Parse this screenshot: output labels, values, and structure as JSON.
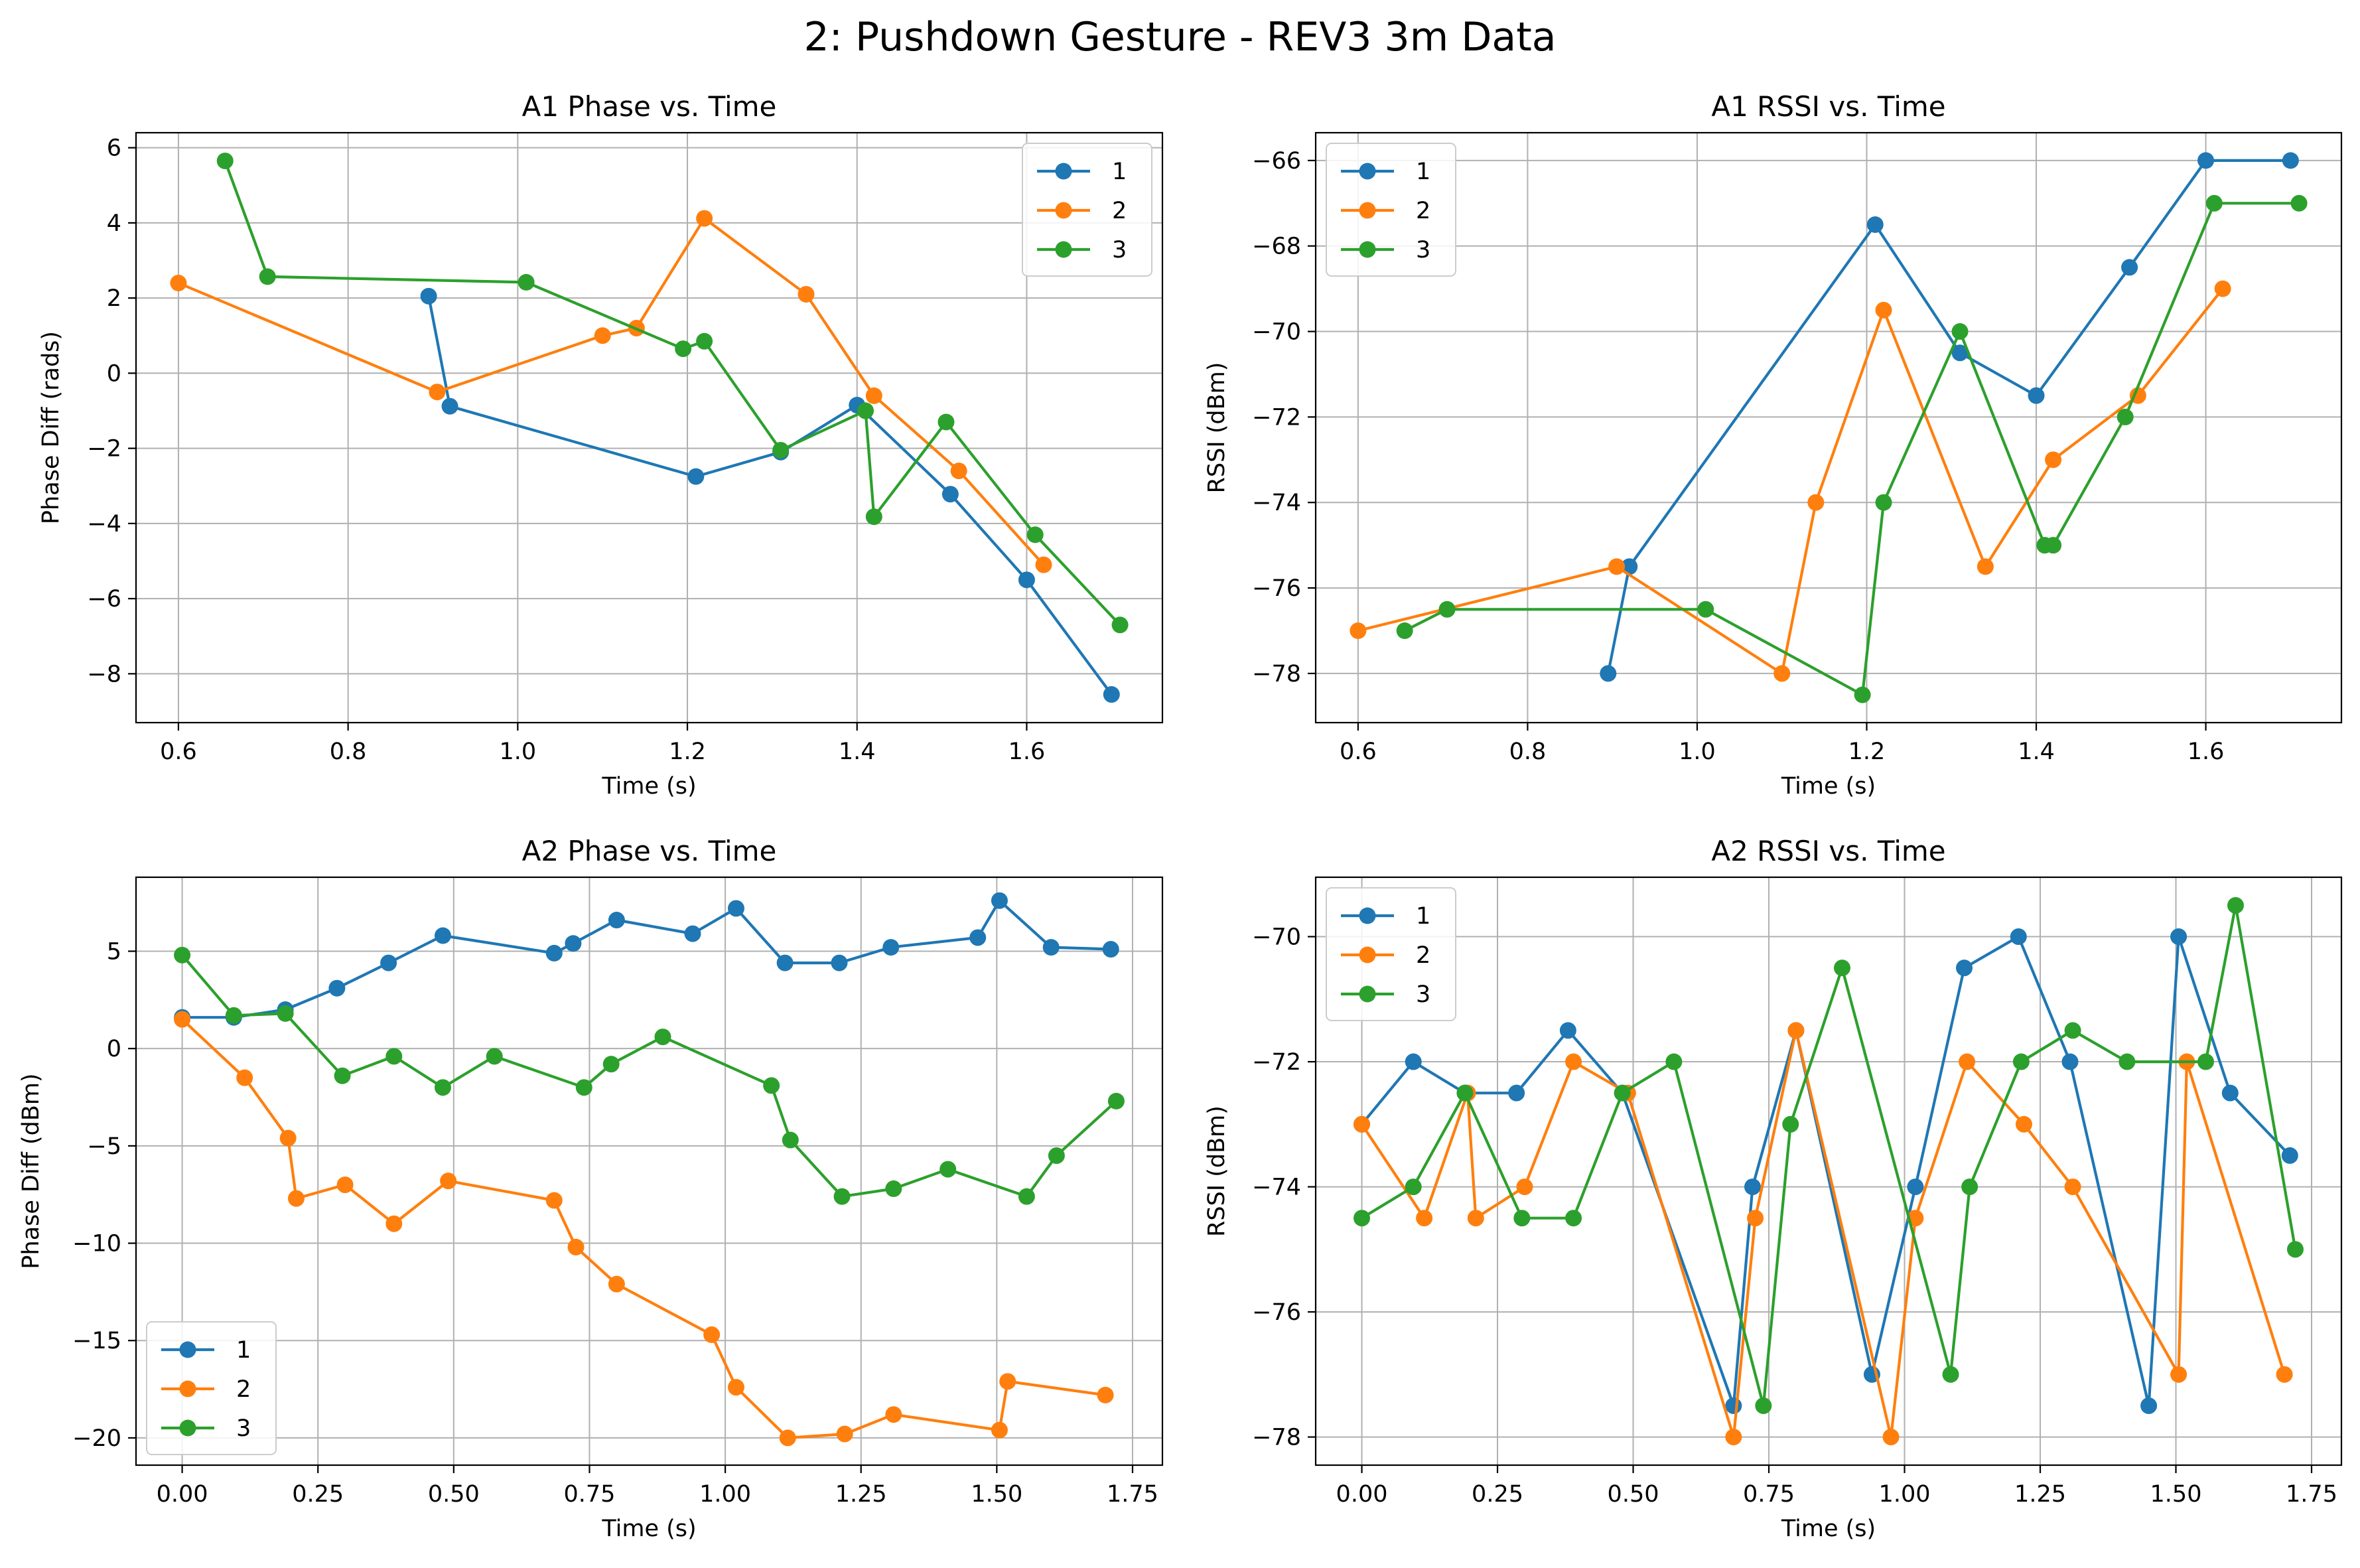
{
  "figure": {
    "title": "2: Pushdown Gesture - REV3 3m Data"
  },
  "colors": {
    "1": "#1f77b4",
    "2": "#ff7f0e",
    "3": "#2ca02c",
    "grid": "#b0b0b0",
    "axes": "#000000"
  },
  "chart_data": [
    {
      "type": "line",
      "title": "A1 Phase vs. Time",
      "xlabel": "Time (s)",
      "ylabel": "Phase Diff (rads)",
      "xlim": [
        0.55,
        1.76
      ],
      "ylim": [
        -9.3,
        6.4
      ],
      "xticks": [
        0.6,
        0.8,
        1.0,
        1.2,
        1.4,
        1.6
      ],
      "xtick_labels": [
        "0.6",
        "0.8",
        "1.0",
        "1.2",
        "1.4",
        "1.6"
      ],
      "yticks": [
        6,
        4,
        2,
        0,
        -2,
        -4,
        -6,
        -8
      ],
      "ytick_labels": [
        "6",
        "4",
        "2",
        "0",
        "−2",
        "−4",
        "−6",
        "−8"
      ],
      "grid": true,
      "legend_loc": "upper-right",
      "series": [
        {
          "name": "1",
          "x": [
            0.895,
            0.92,
            1.21,
            1.31,
            1.4,
            1.51,
            1.6,
            1.7
          ],
          "y": [
            2.05,
            -0.88,
            -2.75,
            -2.1,
            -0.85,
            -3.22,
            -5.5,
            -8.55
          ]
        },
        {
          "name": "2",
          "x": [
            0.6,
            0.905,
            1.1,
            1.14,
            1.22,
            1.34,
            1.42,
            1.52,
            1.62
          ],
          "y": [
            2.4,
            -0.5,
            1.0,
            1.2,
            4.12,
            2.1,
            -0.6,
            -2.6,
            -5.1
          ]
        },
        {
          "name": "3",
          "x": [
            0.655,
            0.705,
            1.01,
            1.195,
            1.22,
            1.31,
            1.41,
            1.42,
            1.505,
            1.61,
            1.71
          ],
          "y": [
            5.65,
            2.57,
            2.42,
            0.65,
            0.85,
            -2.05,
            -1.0,
            -3.82,
            -1.3,
            -4.3,
            -6.7
          ]
        }
      ]
    },
    {
      "type": "line",
      "title": "A1 RSSI vs. Time",
      "xlabel": "Time (s)",
      "ylabel": "RSSI (dBm)",
      "xlim": [
        0.55,
        1.76
      ],
      "ylim": [
        -79.15,
        -65.35
      ],
      "xticks": [
        0.6,
        0.8,
        1.0,
        1.2,
        1.4,
        1.6
      ],
      "xtick_labels": [
        "0.6",
        "0.8",
        "1.0",
        "1.2",
        "1.4",
        "1.6"
      ],
      "yticks": [
        -66,
        -68,
        -70,
        -72,
        -74,
        -76,
        -78
      ],
      "ytick_labels": [
        "−66",
        "−68",
        "−70",
        "−72",
        "−74",
        "−76",
        "−78"
      ],
      "grid": true,
      "legend_loc": "upper-left",
      "series": [
        {
          "name": "1",
          "x": [
            0.895,
            0.92,
            1.21,
            1.31,
            1.4,
            1.51,
            1.6,
            1.7
          ],
          "y": [
            -78,
            -75.5,
            -67.5,
            -70.5,
            -71.5,
            -68.5,
            -66,
            -66
          ]
        },
        {
          "name": "2",
          "x": [
            0.6,
            0.905,
            1.1,
            1.14,
            1.22,
            1.34,
            1.42,
            1.52,
            1.62
          ],
          "y": [
            -77,
            -75.5,
            -78,
            -74,
            -69.5,
            -75.5,
            -73,
            -71.5,
            -69
          ]
        },
        {
          "name": "3",
          "x": [
            0.655,
            0.705,
            1.01,
            1.195,
            1.22,
            1.31,
            1.41,
            1.42,
            1.505,
            1.61,
            1.71
          ],
          "y": [
            -77,
            -76.5,
            -76.5,
            -78.5,
            -74,
            -70,
            -75,
            -75,
            -72,
            -67,
            -67
          ]
        }
      ]
    },
    {
      "type": "line",
      "title": "A2 Phase vs. Time",
      "xlabel": "Time (s)",
      "ylabel": "Phase Diff (dBm)",
      "xlim": [
        -0.085,
        1.805
      ],
      "ylim": [
        -21.4,
        8.8
      ],
      "xticks": [
        0.0,
        0.25,
        0.5,
        0.75,
        1.0,
        1.25,
        1.5,
        1.75
      ],
      "xtick_labels": [
        "0.00",
        "0.25",
        "0.50",
        "0.75",
        "1.00",
        "1.25",
        "1.50",
        "1.75"
      ],
      "yticks": [
        5,
        0,
        -5,
        -10,
        -15,
        -20
      ],
      "ytick_labels": [
        "5",
        "0",
        "−5",
        "−10",
        "−15",
        "−20"
      ],
      "grid": true,
      "legend_loc": "lower-left",
      "series": [
        {
          "name": "1",
          "x": [
            0.0,
            0.095,
            0.19,
            0.285,
            0.38,
            0.48,
            0.685,
            0.72,
            0.8,
            0.94,
            1.02,
            1.11,
            1.21,
            1.305,
            1.465,
            1.505,
            1.6,
            1.71
          ],
          "y": [
            1.6,
            1.6,
            2.0,
            3.1,
            4.4,
            5.8,
            4.9,
            5.4,
            6.6,
            5.9,
            7.2,
            4.4,
            4.4,
            5.2,
            5.7,
            7.6,
            5.2,
            5.1
          ]
        },
        {
          "name": "2",
          "x": [
            0.0,
            0.115,
            0.195,
            0.21,
            0.3,
            0.39,
            0.49,
            0.685,
            0.725,
            0.8,
            0.975,
            1.02,
            1.115,
            1.22,
            1.31,
            1.505,
            1.52,
            1.7
          ],
          "y": [
            1.5,
            -1.5,
            -4.6,
            -7.7,
            -7.0,
            -9.0,
            -6.8,
            -7.8,
            -10.2,
            -12.1,
            -14.7,
            -17.4,
            -20.0,
            -19.8,
            -18.8,
            -19.6,
            -17.1,
            -17.8
          ]
        },
        {
          "name": "3",
          "x": [
            0.0,
            0.095,
            0.19,
            0.295,
            0.39,
            0.48,
            0.575,
            0.74,
            0.79,
            0.885,
            1.085,
            1.12,
            1.215,
            1.31,
            1.41,
            1.555,
            1.61,
            1.72
          ],
          "y": [
            4.8,
            1.7,
            1.8,
            -1.4,
            -0.4,
            -2.0,
            -0.4,
            -2.0,
            -0.8,
            0.6,
            -1.9,
            -4.7,
            -7.6,
            -7.2,
            -6.2,
            -7.6,
            -5.5,
            -2.7
          ]
        }
      ]
    },
    {
      "type": "line",
      "title": "A2 RSSI vs. Time",
      "xlabel": "Time (s)",
      "ylabel": "RSSI (dBm)",
      "xlim": [
        -0.085,
        1.805
      ],
      "ylim": [
        -78.45,
        -69.05
      ],
      "xticks": [
        0.0,
        0.25,
        0.5,
        0.75,
        1.0,
        1.25,
        1.5,
        1.75
      ],
      "xtick_labels": [
        "0.00",
        "0.25",
        "0.50",
        "0.75",
        "1.00",
        "1.25",
        "1.50",
        "1.75"
      ],
      "yticks": [
        -70,
        -72,
        -74,
        -76,
        -78
      ],
      "ytick_labels": [
        "−70",
        "−72",
        "−74",
        "−76",
        "−78"
      ],
      "grid": true,
      "legend_loc": "upper-left",
      "series": [
        {
          "name": "1",
          "x": [
            0.0,
            0.095,
            0.19,
            0.285,
            0.38,
            0.48,
            0.685,
            0.72,
            0.8,
            0.94,
            1.02,
            1.11,
            1.21,
            1.305,
            1.45,
            1.505,
            1.6,
            1.71
          ],
          "y": [
            -73,
            -72,
            -72.5,
            -72.5,
            -71.5,
            -72.5,
            -77.5,
            -74,
            -71.5,
            -77,
            -74,
            -70.5,
            -70,
            -72,
            -77.5,
            -70,
            -72.5,
            -73.5
          ]
        },
        {
          "name": "2",
          "x": [
            0.0,
            0.115,
            0.195,
            0.21,
            0.3,
            0.39,
            0.49,
            0.685,
            0.725,
            0.8,
            0.975,
            1.02,
            1.115,
            1.22,
            1.31,
            1.505,
            1.52,
            1.7
          ],
          "y": [
            -73,
            -74.5,
            -72.5,
            -74.5,
            -74,
            -72,
            -72.5,
            -78,
            -74.5,
            -71.5,
            -78,
            -74.5,
            -72,
            -73,
            -74,
            -77,
            -72,
            -77
          ]
        },
        {
          "name": "3",
          "x": [
            0.0,
            0.095,
            0.19,
            0.295,
            0.39,
            0.48,
            0.575,
            0.74,
            0.79,
            0.885,
            1.085,
            1.12,
            1.215,
            1.31,
            1.41,
            1.555,
            1.61,
            1.72
          ],
          "y": [
            -74.5,
            -74,
            -72.5,
            -74.5,
            -74.5,
            -72.5,
            -72,
            -77.5,
            -73,
            -70.5,
            -77,
            -74,
            -72,
            -71.5,
            -72,
            -72,
            -69.5,
            -75
          ]
        }
      ]
    }
  ]
}
